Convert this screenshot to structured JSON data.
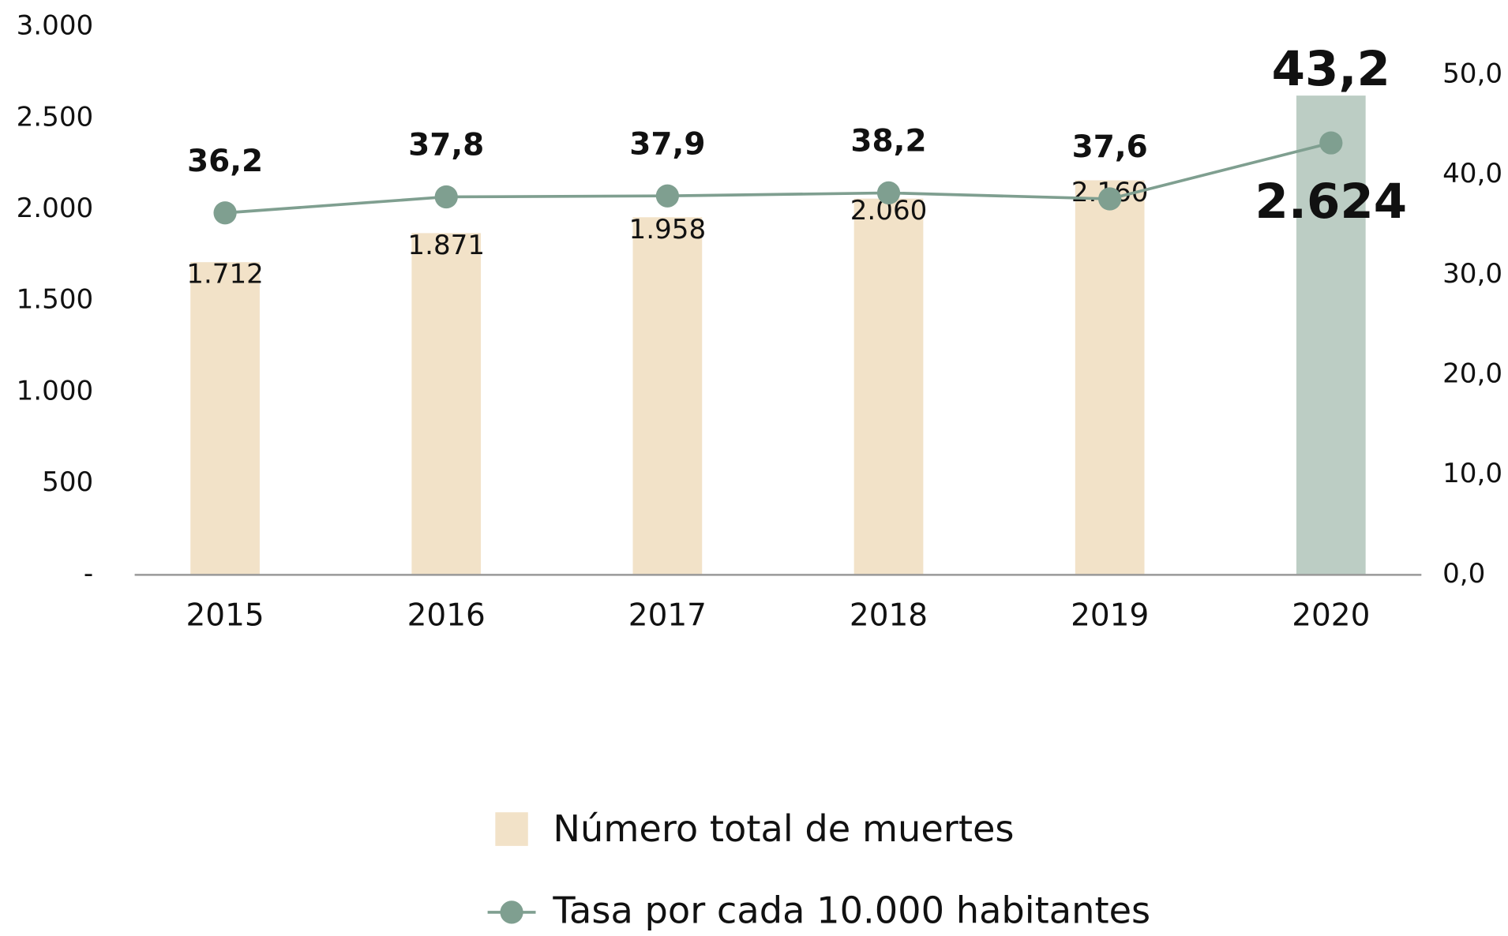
{
  "chart_data": {
    "type": "bar-line",
    "categories": [
      "2015",
      "2016",
      "2017",
      "2018",
      "2019",
      "2020"
    ],
    "series": [
      {
        "name": "Número total de muertes",
        "type": "bar",
        "axis": "y",
        "colors": [
          "#f2e2c8",
          "#f2e2c8",
          "#f2e2c8",
          "#f2e2c8",
          "#f2e2c8",
          "#bccdc4"
        ],
        "values": [
          1712,
          1871,
          1958,
          2060,
          2160,
          2624
        ],
        "value_labels": [
          "1.712",
          "1.871",
          "1.958",
          "2.060",
          "2.160",
          "2.624"
        ]
      },
      {
        "name": "Tasa por cada 10.000 habitantes",
        "type": "line",
        "axis": "y2",
        "color": "#7f9f90",
        "values": [
          36.2,
          37.8,
          37.9,
          38.2,
          37.6,
          43.2
        ],
        "value_labels": [
          "36,2",
          "37,8",
          "37,9",
          "38,2",
          "37,6",
          "43,2"
        ]
      }
    ],
    "ylim": [
      0,
      3000
    ],
    "yticks": [
      {
        "value": 0,
        "label": "-"
      },
      500,
      {
        "value": 1000,
        "label": "1.000"
      },
      {
        "value": 1500,
        "label": "1.500"
      },
      {
        "value": 2000,
        "label": "2.000"
      },
      {
        "value": 2500,
        "label": "2.500"
      },
      {
        "value": 3000,
        "label": "3.000"
      }
    ],
    "y2lim": [
      0,
      54.8
    ],
    "y2ticks": [
      {
        "value": 0,
        "label": "0,0"
      },
      {
        "value": 10,
        "label": "10,0"
      },
      {
        "value": 20,
        "label": "20,0"
      },
      {
        "value": 30,
        "label": "30,0"
      },
      {
        "value": 40,
        "label": "40,0"
      },
      {
        "value": 50,
        "label": "50,0"
      }
    ],
    "grid": false,
    "legend": "bottom"
  }
}
